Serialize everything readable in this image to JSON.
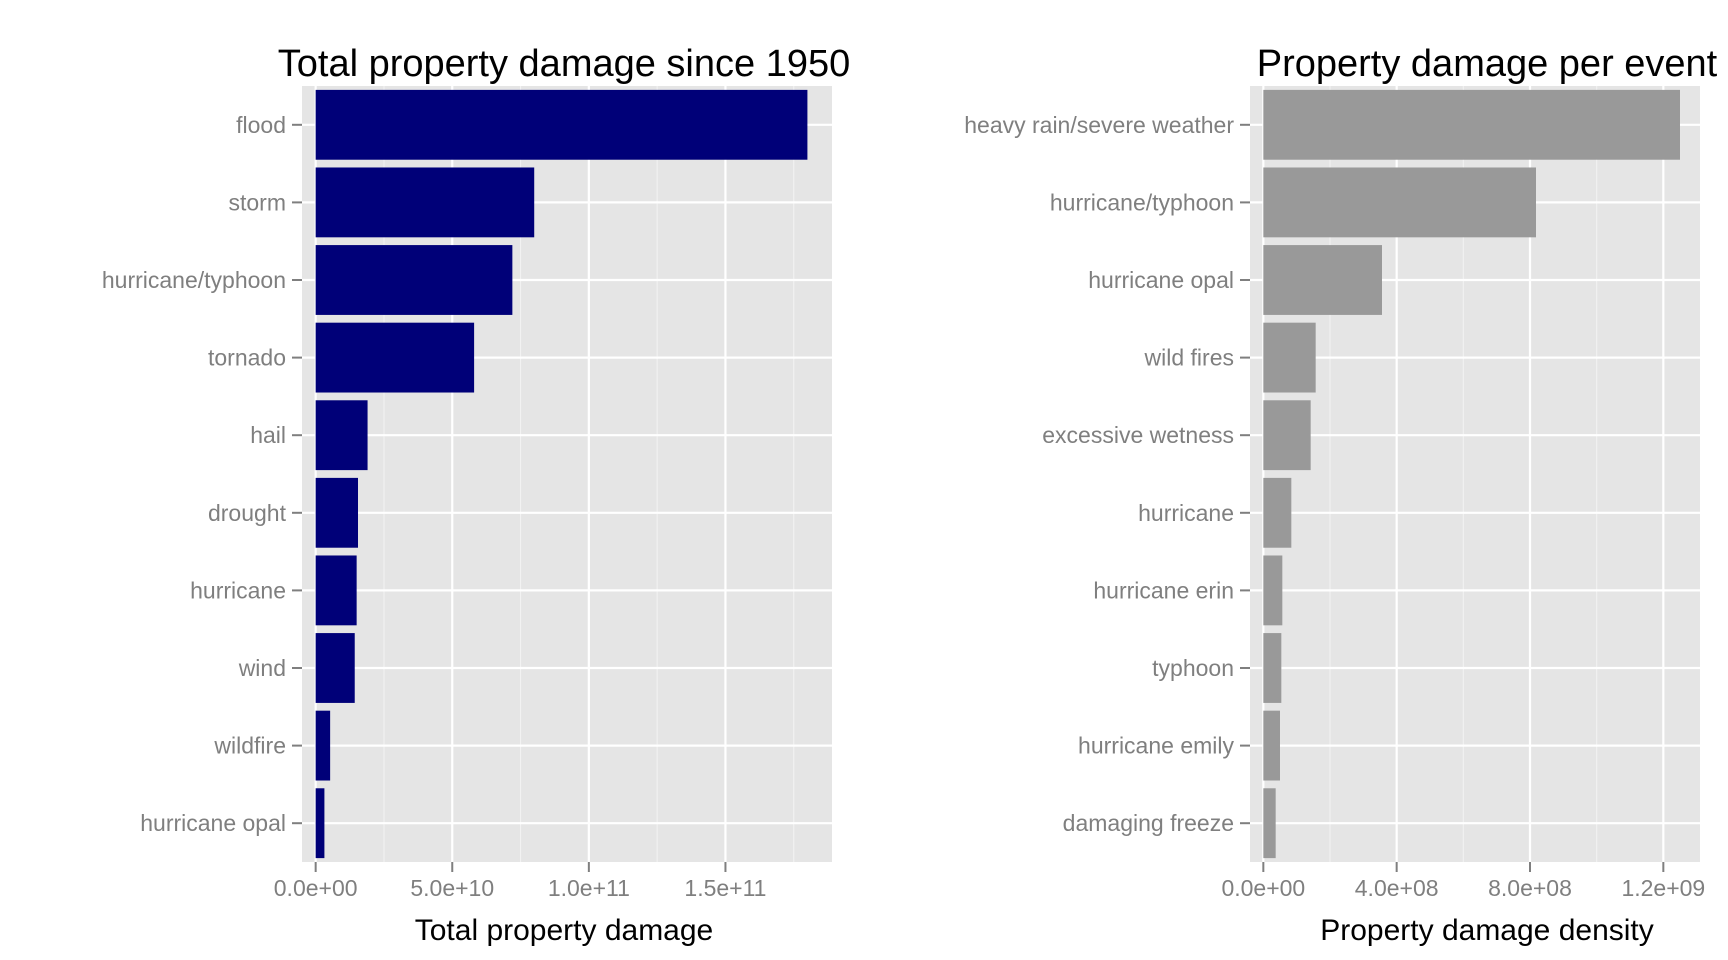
{
  "chart_data": [
    {
      "type": "bar",
      "orientation": "horizontal",
      "title": "Total property damage since 1950",
      "xlabel": "Total property damage",
      "ylabel": "",
      "categories": [
        "flood",
        "storm",
        "hurricane/typhoon",
        "tornado",
        "hail",
        "drought",
        "hurricane",
        "wind",
        "wildfire",
        "hurricane opal"
      ],
      "values": [
        180000000000,
        80000000000,
        72000000000,
        58000000000,
        19000000000,
        15500000000,
        15000000000,
        14300000000,
        5300000000,
        3200000000
      ],
      "xlim": [
        -5000000000,
        189000000000
      ],
      "ticks": [
        0,
        50000000000,
        100000000000,
        150000000000
      ],
      "tick_labels": [
        "0.0e+00",
        "5.0e+10",
        "1.0e+11",
        "1.5e+11"
      ],
      "bar_color": "#000078",
      "grid": true,
      "legend": "none"
    },
    {
      "type": "bar",
      "orientation": "horizontal",
      "title": "Property damage per event",
      "xlabel": "Property damage density",
      "ylabel": "",
      "categories": [
        "heavy rain/severe weather",
        "hurricane/typhoon",
        "hurricane opal",
        "wild fires",
        "excessive wetness",
        "hurricane",
        "hurricane erin",
        "typhoon",
        "hurricane emily",
        "damaging freeze"
      ],
      "values": [
        1250000000,
        818000000,
        356000000,
        157000000,
        142000000,
        84000000,
        57000000,
        54000000,
        50000000,
        37000000
      ],
      "xlim": [
        -40000000,
        1310000000
      ],
      "ticks": [
        0,
        400000000,
        800000000,
        1200000000
      ],
      "tick_labels": [
        "0.0e+00",
        "4.0e+08",
        "8.0e+08",
        "1.2e+09"
      ],
      "bar_color": "#999999",
      "grid": true,
      "legend": "none"
    }
  ]
}
